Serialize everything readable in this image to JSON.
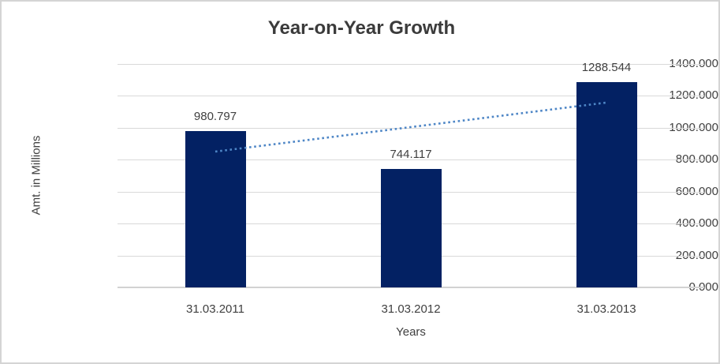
{
  "chart_data": {
    "type": "bar",
    "title": "Year-on-Year Growth",
    "categories": [
      "31.03.2011",
      "31.03.2012",
      "31.03.2013"
    ],
    "values": [
      980.797,
      744.117,
      1288.544
    ],
    "data_labels": [
      "980.797",
      "744.117",
      "1288.544"
    ],
    "xlabel": "Years",
    "ylabel": "Amt. in Millions",
    "ylim": [
      0,
      1400
    ],
    "ytick_step": 200,
    "ytick_labels": [
      "0.000",
      "200.000",
      "400.000",
      "600.000",
      "800.000",
      "1000.000",
      "1200.000",
      "1400.000"
    ],
    "grid": true,
    "legend": "none",
    "trendline": {
      "style": "dotted",
      "type": "linear",
      "start_value": 851,
      "end_value": 1158
    },
    "colors": {
      "bar": "#032163",
      "trendline": "#4e86c6",
      "gridline": "#d9d9d9",
      "axis_line": "#d2d2d2",
      "text": "#404040",
      "title_text": "#3b3b3b"
    }
  }
}
